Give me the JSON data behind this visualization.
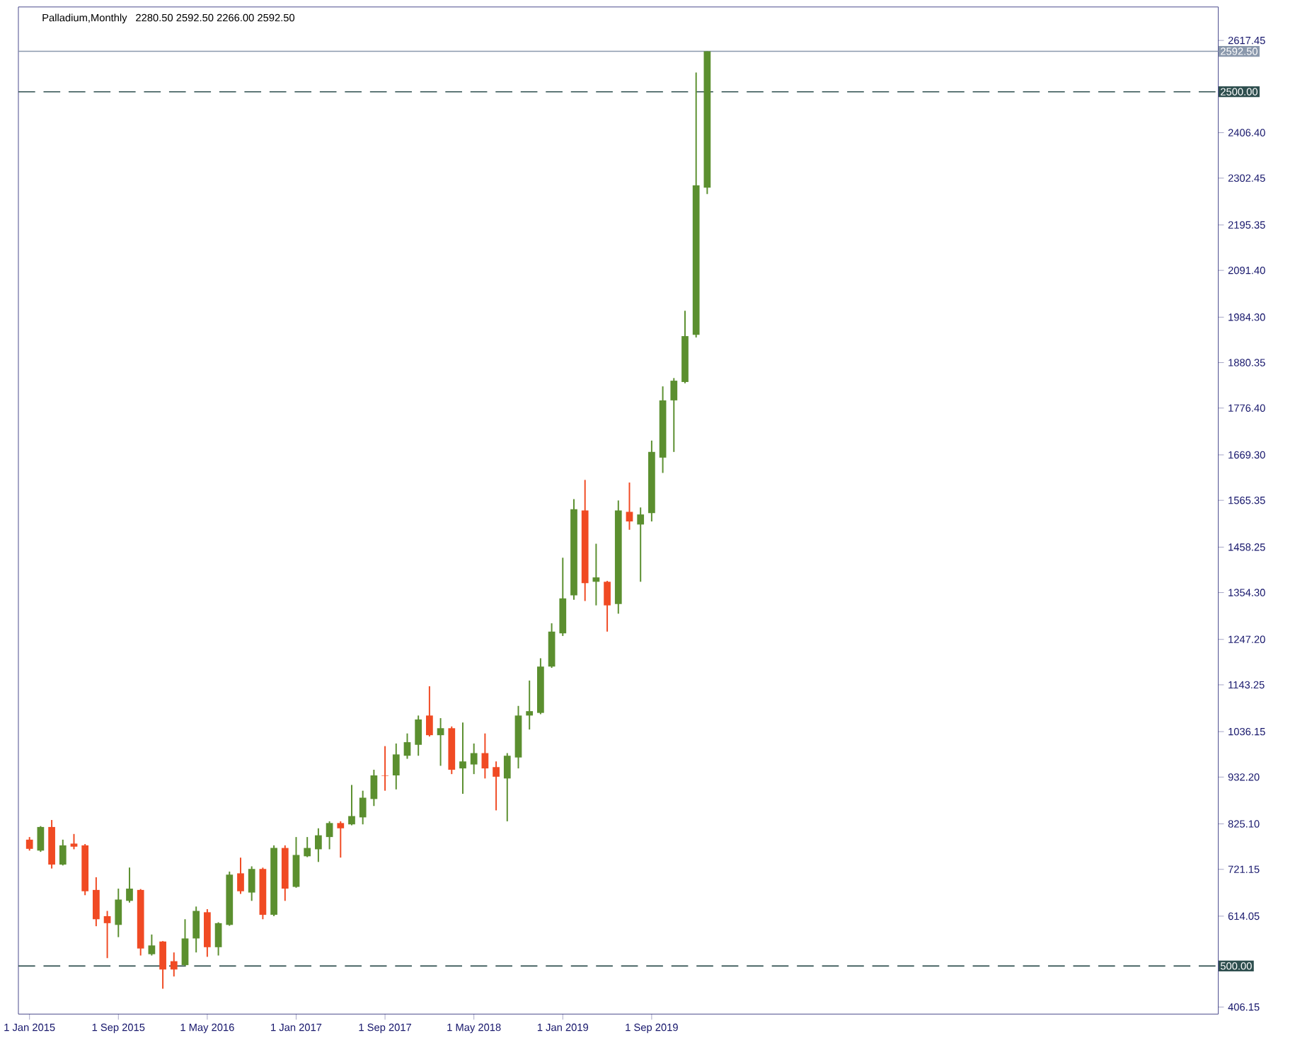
{
  "chart_data": {
    "type": "candlestick",
    "title": "Palladium,Monthly",
    "subtitle": "2280.50 2592.50 2266.00 2592.50",
    "x": [
      "2015-01",
      "2015-02",
      "2015-03",
      "2015-04",
      "2015-05",
      "2015-06",
      "2015-07",
      "2015-08",
      "2015-09",
      "2015-10",
      "2015-11",
      "2015-12",
      "2016-01",
      "2016-02",
      "2016-03",
      "2016-04",
      "2016-05",
      "2016-06",
      "2016-07",
      "2016-08",
      "2016-09",
      "2016-10",
      "2016-11",
      "2016-12",
      "2017-01",
      "2017-02",
      "2017-03",
      "2017-04",
      "2017-05",
      "2017-06",
      "2017-07",
      "2017-08",
      "2017-09",
      "2017-10",
      "2017-11",
      "2017-12",
      "2018-01",
      "2018-02",
      "2018-03",
      "2018-04",
      "2018-05",
      "2018-06",
      "2018-07",
      "2018-08",
      "2018-09",
      "2018-10",
      "2018-11",
      "2018-12",
      "2019-01",
      "2019-02",
      "2019-03",
      "2019-04",
      "2019-05",
      "2019-06",
      "2019-07",
      "2019-08",
      "2019-09",
      "2019-10",
      "2019-11",
      "2019-12",
      "2020-01",
      "2020-02"
    ],
    "ohlc": [
      [
        789,
        795,
        764,
        768
      ],
      [
        764,
        820,
        761,
        818
      ],
      [
        818,
        834,
        723,
        732
      ],
      [
        732,
        789,
        730,
        776
      ],
      [
        780,
        802,
        767,
        773
      ],
      [
        776,
        779,
        662,
        671
      ],
      [
        674,
        703,
        591,
        607
      ],
      [
        614,
        626,
        518,
        598
      ],
      [
        594,
        677,
        566,
        652
      ],
      [
        649,
        725,
        645,
        677
      ],
      [
        674,
        676,
        524,
        540
      ],
      [
        527,
        572,
        524,
        547
      ],
      [
        556,
        557,
        448,
        492
      ],
      [
        511,
        531,
        476,
        492
      ],
      [
        502,
        607,
        500,
        563
      ],
      [
        563,
        636,
        531,
        626
      ],
      [
        623,
        630,
        521,
        543
      ],
      [
        543,
        600,
        524,
        598
      ],
      [
        594,
        716,
        592,
        709
      ],
      [
        712,
        748,
        665,
        671
      ],
      [
        668,
        728,
        649,
        722
      ],
      [
        722,
        725,
        607,
        617
      ],
      [
        617,
        776,
        614,
        770
      ],
      [
        770,
        776,
        649,
        677
      ],
      [
        681,
        795,
        679,
        754
      ],
      [
        751,
        795,
        749,
        770
      ],
      [
        767,
        815,
        738,
        799
      ],
      [
        795,
        831,
        767,
        827
      ],
      [
        827,
        831,
        748,
        815
      ],
      [
        824,
        914,
        822,
        843
      ],
      [
        840,
        901,
        824,
        885
      ],
      [
        882,
        949,
        866,
        936
      ],
      [
        936,
        1003,
        901,
        935
      ],
      [
        936,
        1009,
        904,
        984
      ],
      [
        981,
        1032,
        974,
        1012
      ],
      [
        1006,
        1073,
        981,
        1064
      ],
      [
        1073,
        1140,
        1025,
        1028
      ],
      [
        1028,
        1067,
        958,
        1044
      ],
      [
        1044,
        1048,
        939,
        949
      ],
      [
        952,
        1057,
        894,
        968
      ],
      [
        961,
        1009,
        939,
        987
      ],
      [
        987,
        1032,
        929,
        952
      ],
      [
        955,
        968,
        856,
        933
      ],
      [
        929,
        987,
        831,
        981
      ],
      [
        977,
        1095,
        952,
        1073
      ],
      [
        1073,
        1153,
        1041,
        1083
      ],
      [
        1079,
        1204,
        1076,
        1185
      ],
      [
        1185,
        1284,
        1182,
        1265
      ],
      [
        1261,
        1434,
        1255,
        1341
      ],
      [
        1348,
        1568,
        1338,
        1545
      ],
      [
        1542,
        1612,
        1335,
        1376
      ],
      [
        1379,
        1466,
        1325,
        1389
      ],
      [
        1379,
        1381,
        1265,
        1325
      ],
      [
        1328,
        1565,
        1306,
        1542
      ],
      [
        1539,
        1606,
        1498,
        1517
      ],
      [
        1510,
        1549,
        1379,
        1533
      ],
      [
        1536,
        1702,
        1517,
        1676
      ],
      [
        1663,
        1826,
        1628,
        1794
      ],
      [
        1794,
        1845,
        1676,
        1839
      ],
      [
        1836,
        1999,
        1833,
        1941
      ],
      [
        1944,
        2544,
        1938,
        2286
      ],
      [
        2280.5,
        2592.5,
        2266,
        2592.5
      ]
    ],
    "colors": [
      "#f04a23",
      "#5b8f2f",
      "#f04a23",
      "#5b8f2f",
      "#f04a23",
      "#f04a23",
      "#f04a23",
      "#f04a23",
      "#5b8f2f",
      "#5b8f2f",
      "#f04a23",
      "#5b8f2f",
      "#f04a23",
      "#f04a23",
      "#5b8f2f",
      "#5b8f2f",
      "#f04a23",
      "#5b8f2f",
      "#5b8f2f",
      "#f04a23",
      "#5b8f2f",
      "#f04a23",
      "#5b8f2f",
      "#f04a23",
      "#5b8f2f",
      "#5b8f2f",
      "#5b8f2f",
      "#5b8f2f",
      "#f04a23",
      "#5b8f2f",
      "#5b8f2f",
      "#5b8f2f",
      "#f04a23",
      "#5b8f2f",
      "#5b8f2f",
      "#5b8f2f",
      "#f04a23",
      "#5b8f2f",
      "#f04a23",
      "#5b8f2f",
      "#5b8f2f",
      "#f04a23",
      "#f04a23",
      "#5b8f2f",
      "#5b8f2f",
      "#5b8f2f",
      "#5b8f2f",
      "#5b8f2f",
      "#5b8f2f",
      "#5b8f2f",
      "#f04a23",
      "#5b8f2f",
      "#f04a23",
      "#5b8f2f",
      "#f04a23",
      "#5b8f2f",
      "#5b8f2f",
      "#5b8f2f",
      "#5b8f2f",
      "#5b8f2f",
      "#5b8f2f",
      "#5b8f2f"
    ],
    "xlim": [
      "2014-12",
      "2023-12"
    ],
    "xticks": [
      {
        "value": "2015-01",
        "label": "1 Jan 2015"
      },
      {
        "value": "2015-09",
        "label": "1 Sep 2015"
      },
      {
        "value": "2016-05",
        "label": "1 May 2016"
      },
      {
        "value": "2017-01",
        "label": "1 Jan 2017"
      },
      {
        "value": "2017-09",
        "label": "1 Sep 2017"
      },
      {
        "value": "2018-05",
        "label": "1 May 2018"
      },
      {
        "value": "2019-01",
        "label": "1 Jan 2019"
      },
      {
        "value": "2019-09",
        "label": "1 Sep 2019"
      }
    ],
    "ylim": [
      390,
      2694
    ],
    "yticks": [
      406.15,
      614.05,
      721.15,
      {
        "value": 825.1,
        "label": "825.10"
      },
      {
        "value": 932.2,
        "label": "932.20"
      },
      1036.15,
      1143.25,
      {
        "value": 1247.2,
        "label": "1247.20"
      },
      {
        "value": 1354.3,
        "label": "1354.30"
      },
      1458.25,
      1565.35,
      {
        "value": 1669.3,
        "label": "1669.30"
      },
      {
        "value": 1776.4,
        "label": "1776.40"
      },
      1880.35,
      {
        "value": 1984.3,
        "label": "1984.30"
      },
      {
        "value": 2091.4,
        "label": "2091.40"
      },
      2195.35,
      2302.45,
      {
        "value": 2406.4,
        "label": "2406.40"
      },
      2617.45
    ],
    "ref_lines": [
      {
        "axis": "y",
        "value": 2592.5,
        "label": "2592.50",
        "color": "#8a98ac",
        "line_style": "solid"
      },
      {
        "axis": "y",
        "value": 2500,
        "label": "2500.00",
        "color": "#2f4f4f",
        "line_style": "dashed"
      },
      {
        "axis": "y",
        "value": 500,
        "label": "500.00",
        "color": "#2f4f4f",
        "line_style": "dashed"
      }
    ],
    "grid": false
  }
}
